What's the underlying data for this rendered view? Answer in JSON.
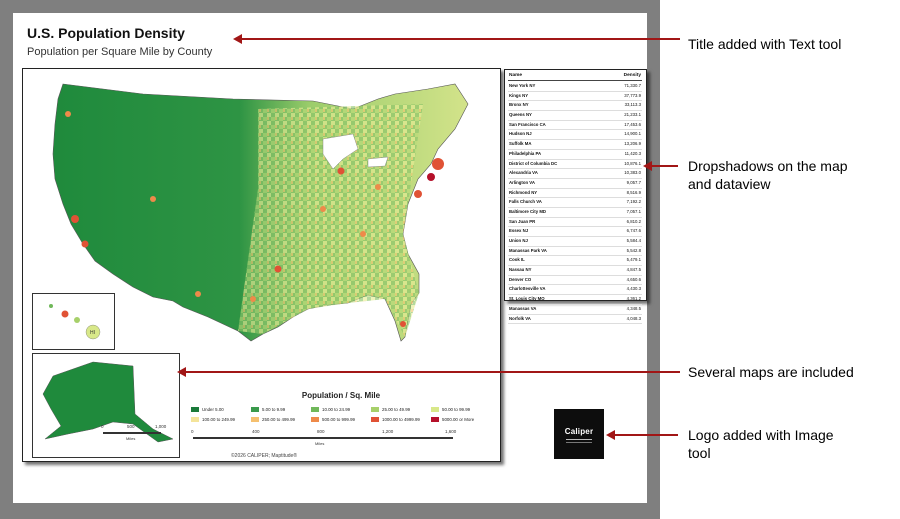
{
  "page": {
    "title": "U.S. Population Density",
    "subtitle": "Population per Square Mile by County"
  },
  "legend": {
    "title": "Population / Sq. Mile",
    "items": [
      {
        "label": "Under 5.00",
        "color": "#1a7a3a"
      },
      {
        "label": "5.00 to 9.99",
        "color": "#3a9a4c"
      },
      {
        "label": "10.00 to 24.99",
        "color": "#70b85a"
      },
      {
        "label": "25.00 to 49.99",
        "color": "#a7d06a"
      },
      {
        "label": "50.00 to 99.99",
        "color": "#d8e889"
      },
      {
        "label": "100.00 to 249.99",
        "color": "#f4e49a"
      },
      {
        "label": "250.00 to 499.99",
        "color": "#f5c06f"
      },
      {
        "label": "500.00 to 999.99",
        "color": "#ee8a4a"
      },
      {
        "label": "1000.00 to 4999.99",
        "color": "#e05235"
      },
      {
        "label": "5000.00 or More",
        "color": "#b5102a"
      }
    ]
  },
  "scale_main": {
    "ticks": [
      "0",
      "400",
      "800",
      "1,200",
      "1,600"
    ],
    "unit": "Miles"
  },
  "scale_ak": {
    "ticks": [
      "0",
      "500",
      "1,000"
    ],
    "unit": "Miles"
  },
  "copyright": "©2026 CALIPER; Maptitude®",
  "insets": {
    "hawaii_label": "HI"
  },
  "dataview": {
    "columns": [
      "Name",
      "Density"
    ],
    "rows": [
      {
        "name": "New York NY",
        "density": "71,330.7"
      },
      {
        "name": "Kings NY",
        "density": "37,773.9"
      },
      {
        "name": "Bronx NY",
        "density": "33,113.3"
      },
      {
        "name": "Queens NY",
        "density": "21,233.1"
      },
      {
        "name": "San Francisco CA",
        "density": "17,453.6"
      },
      {
        "name": "Hudson NJ",
        "density": "14,900.1"
      },
      {
        "name": "Suffolk MA",
        "density": "13,206.9"
      },
      {
        "name": "Philadelphia PA",
        "density": "11,420.3"
      },
      {
        "name": "District of Columbia DC",
        "density": "10,876.1"
      },
      {
        "name": "Alexandria VA",
        "density": "10,383.0"
      },
      {
        "name": "Arlington VA",
        "density": "9,057.7"
      },
      {
        "name": "Richmond NY",
        "density": "8,516.9"
      },
      {
        "name": "Falls Church VA",
        "density": "7,192.2"
      },
      {
        "name": "Baltimore City MD",
        "density": "7,057.1"
      },
      {
        "name": "San Juan PR",
        "density": "6,810.2"
      },
      {
        "name": "Essex NJ",
        "density": "6,747.6"
      },
      {
        "name": "Union NJ",
        "density": "5,584.4"
      },
      {
        "name": "Manassas Park VA",
        "density": "5,542.8"
      },
      {
        "name": "Cook IL",
        "density": "5,479.1"
      },
      {
        "name": "Nassau NY",
        "density": "4,847.5"
      },
      {
        "name": "Denver CO",
        "density": "4,650.6"
      },
      {
        "name": "Charlottesville VA",
        "density": "4,430.3"
      },
      {
        "name": "St. Louis City MO",
        "density": "4,361.2"
      },
      {
        "name": "Manassas VA",
        "density": "4,348.5"
      },
      {
        "name": "Norfolk VA",
        "density": "4,048.3"
      }
    ]
  },
  "logo": {
    "text": "Caliper"
  },
  "annotations": {
    "title_note": "Title added with Text tool",
    "shadow_note_line1": "Dropshadows on the map",
    "shadow_note_line2": "and dataview",
    "maps_note": "Several maps are included",
    "logo_note_line1": "Logo added with Image",
    "logo_note_line2": "tool",
    "arrow_color": "#a11616"
  }
}
